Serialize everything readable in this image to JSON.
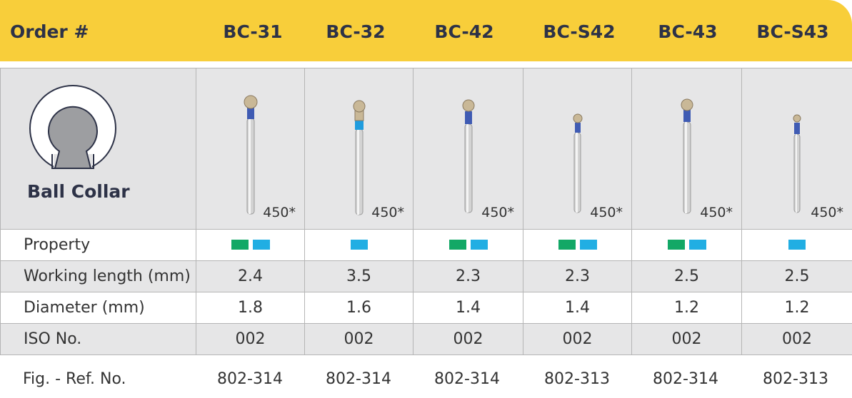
{
  "header": {
    "label": "Order #",
    "columns": [
      "BC-31",
      "BC-32",
      "BC-42",
      "BC-S42",
      "BC-43",
      "BC-S43"
    ]
  },
  "shape": {
    "name": "Ball Collar",
    "icon": "ball-collar-icon"
  },
  "size_labels": [
    "450*",
    "450*",
    "450*",
    "450*",
    "450*",
    "450*"
  ],
  "property": {
    "label": "Property",
    "values": [
      [
        "green",
        "blue"
      ],
      [
        "blue"
      ],
      [
        "green",
        "blue"
      ],
      [
        "green",
        "blue"
      ],
      [
        "green",
        "blue"
      ],
      [
        "blue"
      ]
    ],
    "colors": {
      "green": "#12a866",
      "blue": "#21aee3"
    }
  },
  "working_length": {
    "label": "Working length (mm)",
    "values": [
      "2.4",
      "3.5",
      "2.3",
      "2.3",
      "2.5",
      "2.5"
    ]
  },
  "diameter": {
    "label": "Diameter (mm)",
    "values": [
      "1.8",
      "1.6",
      "1.4",
      "1.4",
      "1.2",
      "1.2"
    ]
  },
  "iso": {
    "label": "ISO No.",
    "values": [
      "002",
      "002",
      "002",
      "002",
      "002",
      "002"
    ]
  },
  "fig_ref": {
    "label": "Fig. - Ref. No.",
    "values": [
      "802-314",
      "802-314",
      "802-314",
      "802-313",
      "802-314",
      "802-313"
    ]
  },
  "colors": {
    "header_bg": "#f8ce3a",
    "header_text": "#2d3247",
    "cell_gray": "#e6e6e7",
    "border": "#b5b5b5"
  }
}
